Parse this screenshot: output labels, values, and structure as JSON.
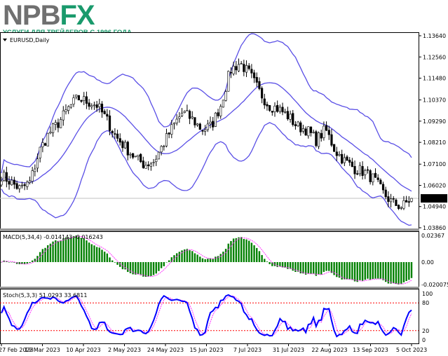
{
  "logo": {
    "brand_part1": "NPB",
    "brand_part2": "FX",
    "tagline": "УСЛУГИ ДЛЯ ТРЕЙДЕРОВ С 1996 ГОДА"
  },
  "colors": {
    "candles": "#000000",
    "bands": "#5a4fe6",
    "macd_bars": "#008000",
    "macd_signal": "#ff33ff",
    "stoch_main": "#0000ff",
    "stoch_signal": "#ff33ff",
    "levels": "#ff0000",
    "brand_gray": "#707070",
    "brand_green": "#1a9a6c",
    "brand_orange": "#f28c1a"
  },
  "chart_data": [
    {
      "type": "candlestick",
      "title": "EURUSD,Daily",
      "symbol_label": "EURUSD,Daily",
      "overlay": "Bollinger Bands",
      "current_price": "1.05357",
      "y_ticks": [
        "1.13640",
        "1.12560",
        "1.11480",
        "1.10370",
        "1.09290",
        "1.08210",
        "1.07100",
        "1.06020",
        "1.04940",
        "1.03860"
      ],
      "ylim": [
        1.0386,
        1.1364
      ],
      "x_ticks": [
        "27 Feb 2023",
        "19 Mar 2023",
        "10 Apr 2023",
        "2 May 2023",
        "24 May 2023",
        "15 Jun 2023",
        "7 Jul 2023",
        "31 Jul 2023",
        "22 Aug 2023",
        "13 Sep 2023",
        "5 Oct 2023"
      ],
      "approx_close_path": [
        1.0654,
        1.0618,
        1.0582,
        1.0618,
        1.0779,
        1.0868,
        1.0921,
        1.0993,
        1.1046,
        1.1028,
        1.1011,
        1.0939,
        1.085,
        1.0796,
        1.0743,
        1.0707,
        1.0725,
        1.0814,
        1.0903,
        1.0975,
        1.0939,
        1.0886,
        1.0903,
        1.1011,
        1.1189,
        1.1225,
        1.1171,
        1.1082,
        1.1011,
        1.0993,
        1.0957,
        1.0903,
        1.0886,
        1.0832,
        1.0886,
        1.0779,
        1.0725,
        1.0689,
        1.0671,
        1.0636,
        1.0564,
        1.0511,
        1.0493,
        1.0536
      ]
    },
    {
      "type": "bar",
      "title": "MACD(5,34,4) -0.014143 -0.016243",
      "y_ticks": [
        "0.02367",
        "0.00",
        "-0.020075"
      ],
      "ylim": [
        -0.020075,
        0.02367
      ]
    },
    {
      "type": "line",
      "title": "Stoch(5,3,3) 51.0293 33.6811",
      "y_ticks": [
        "100",
        "80",
        "20",
        "0"
      ],
      "levels": [
        80,
        20
      ],
      "ylim": [
        0,
        100
      ]
    }
  ]
}
